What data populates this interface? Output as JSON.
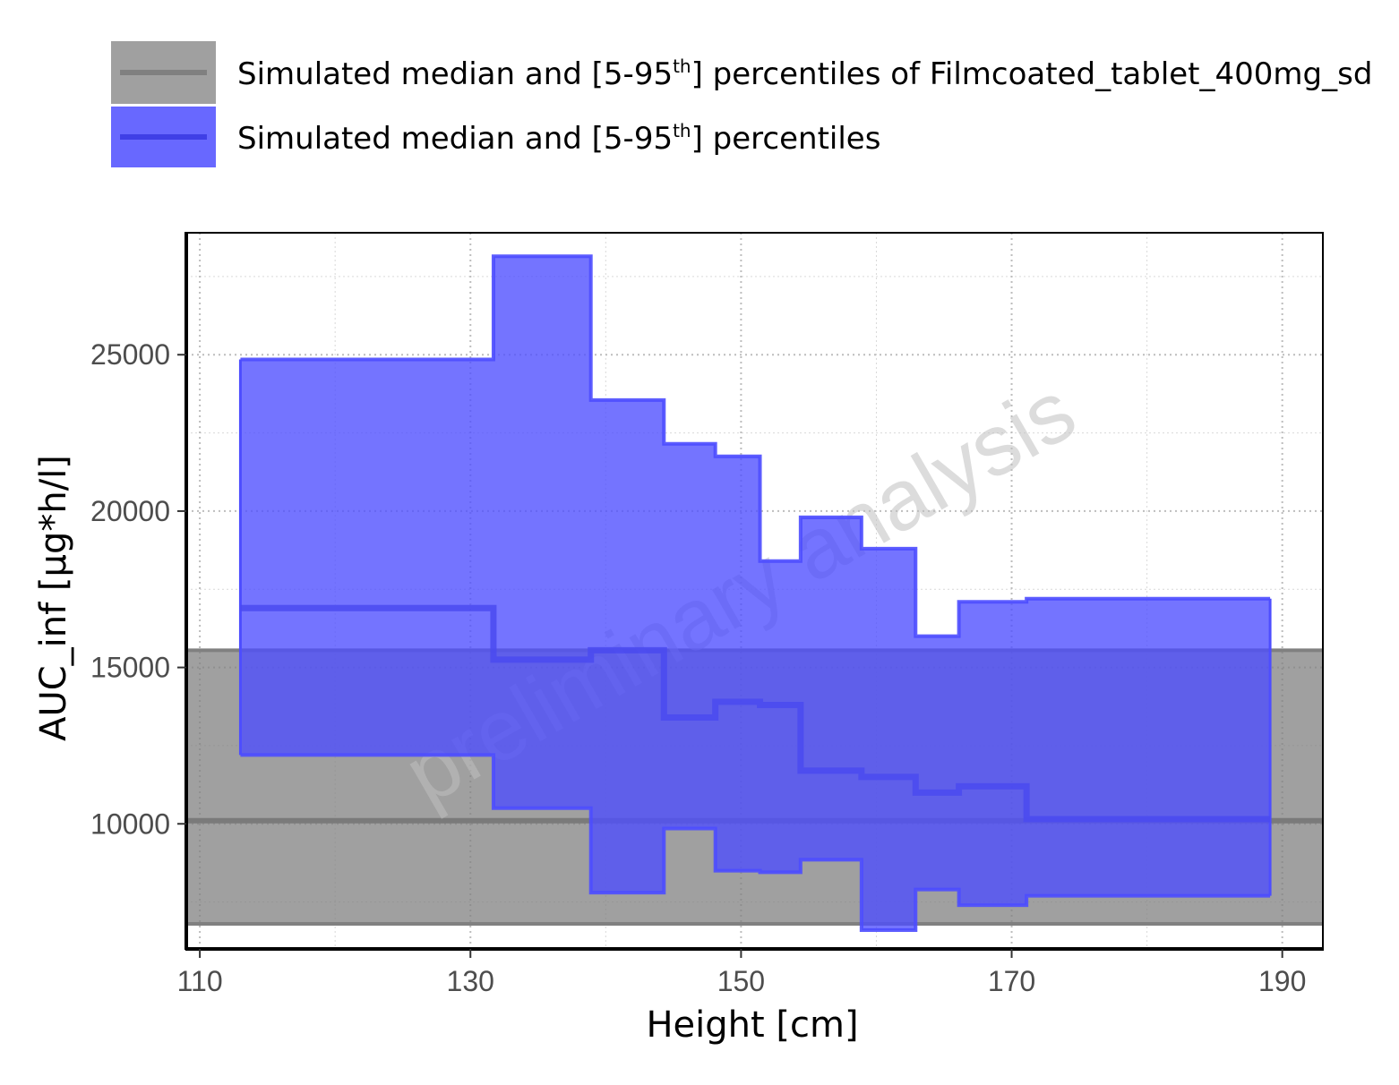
{
  "chart_data": {
    "type": "area",
    "xlabel": "Height [cm]",
    "ylabel": "AUC_inf [µg*h/l]",
    "xlim": [
      109,
      193
    ],
    "ylim": [
      6000,
      28900
    ],
    "x_ticks": [
      110,
      130,
      150,
      170,
      190
    ],
    "y_ticks": [
      10000,
      15000,
      20000,
      25000
    ],
    "grid": true,
    "legend_placement": "top",
    "watermark": "preliminary analysis",
    "legend": [
      {
        "pre": "Simulated median and [5-95",
        "sup": "th",
        "post": "] percentiles of Filmcoated_tablet_400mg_sd",
        "color": "#808080"
      },
      {
        "pre": "Simulated median and [5-95",
        "sup": "th",
        "post": "] percentiles",
        "color": "#4d4dff"
      }
    ],
    "series": [
      {
        "name": "Simulated median and [5-95th] percentiles of Filmcoated_tablet_400mg_sd",
        "type": "reference_band",
        "color": "#808080",
        "median": 10100,
        "p5": 6800,
        "p95": 15550
      },
      {
        "name": "Simulated median and [5-95th] percentiles",
        "type": "step_band",
        "color": "#4d4dff",
        "bins": [
          {
            "x_start": 113.0,
            "x_end": 131.7,
            "p95": 24850,
            "median": 16900,
            "p5": 12200
          },
          {
            "x_start": 131.7,
            "x_end": 138.9,
            "p95": 28150,
            "median": 15250,
            "p5": 10500
          },
          {
            "x_start": 138.9,
            "x_end": 144.3,
            "p95": 23550,
            "median": 15550,
            "p5": 7800
          },
          {
            "x_start": 144.3,
            "x_end": 148.1,
            "p95": 22150,
            "median": 13400,
            "p5": 9850
          },
          {
            "x_start": 148.1,
            "x_end": 151.4,
            "p95": 21750,
            "median": 13900,
            "p5": 8500
          },
          {
            "x_start": 151.4,
            "x_end": 154.4,
            "p95": 18400,
            "median": 13800,
            "p5": 8450
          },
          {
            "x_start": 154.4,
            "x_end": 158.9,
            "p95": 19800,
            "median": 11700,
            "p5": 8850
          },
          {
            "x_start": 158.9,
            "x_end": 162.9,
            "p95": 18800,
            "median": 11500,
            "p5": 6600
          },
          {
            "x_start": 162.9,
            "x_end": 166.1,
            "p95": 16000,
            "median": 11000,
            "p5": 7900
          },
          {
            "x_start": 166.1,
            "x_end": 171.1,
            "p95": 17100,
            "median": 11200,
            "p5": 7400
          },
          {
            "x_start": 171.1,
            "x_end": 189.1,
            "p95": 17200,
            "median": 10150,
            "p5": 7700
          }
        ]
      }
    ]
  }
}
